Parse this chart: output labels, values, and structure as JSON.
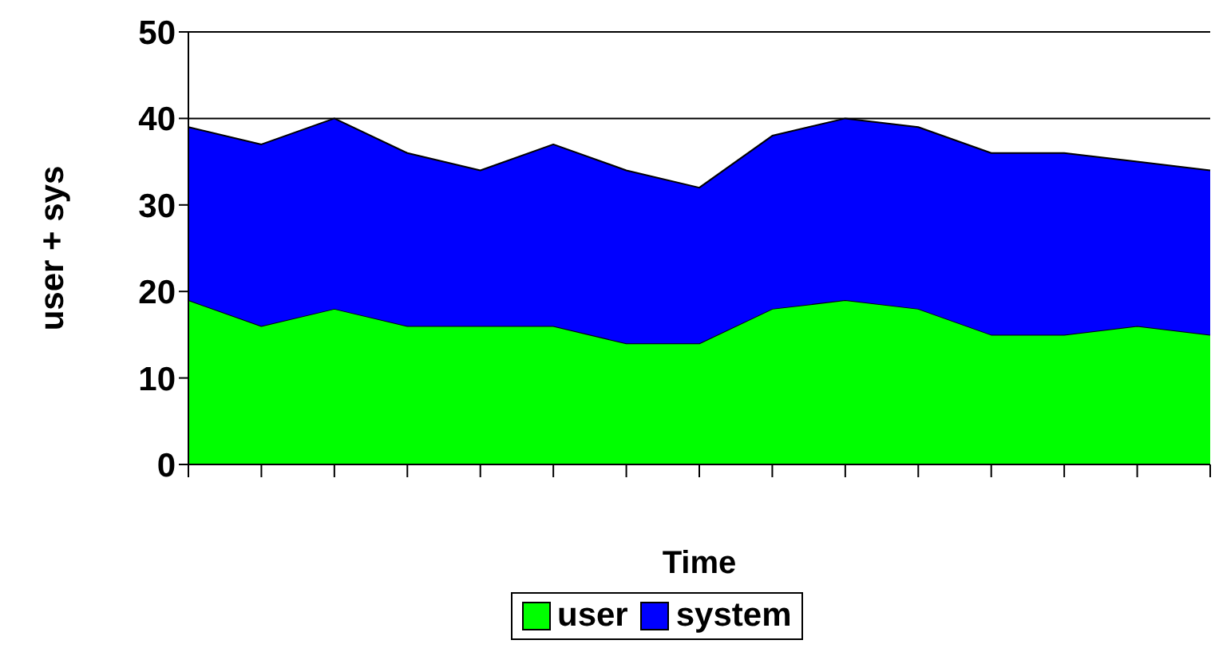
{
  "chart_data": {
    "type": "area",
    "stacked": true,
    "xlabel": "Time",
    "ylabel": "user + sys",
    "categories": [
      null,
      null,
      null,
      null,
      null,
      null,
      null,
      null,
      null,
      null,
      null,
      null,
      null,
      null,
      null
    ],
    "series": [
      {
        "name": "user",
        "color": "#00ff00",
        "values": [
          19,
          16,
          18,
          16,
          16,
          16,
          14,
          14,
          18,
          19,
          18,
          15,
          15,
          16,
          15
        ]
      },
      {
        "name": "system",
        "color": "#0000ff",
        "values": [
          20,
          21,
          22,
          20,
          18,
          21,
          20,
          18,
          20,
          21,
          21,
          21,
          21,
          19,
          19
        ]
      }
    ],
    "ylim": [
      0,
      50
    ],
    "yticks": [
      0,
      10,
      20,
      30,
      40,
      50
    ],
    "grid": "y",
    "legend": "bottom"
  }
}
